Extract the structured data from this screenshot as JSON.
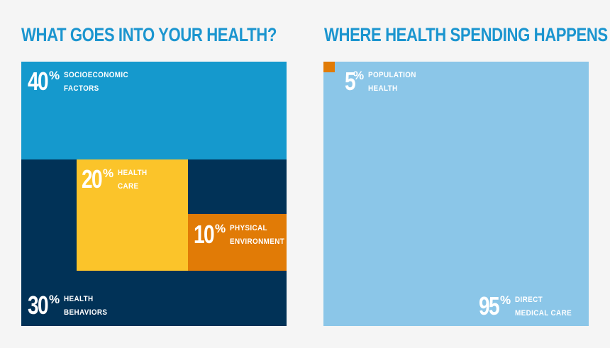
{
  "colors": {
    "background": "#f5f5f5",
    "title": "#1b95cf",
    "socioeconomic": "#1599cd",
    "behaviors": "#013257",
    "health_care": "#fbc42a",
    "physical": "#e17b06",
    "population": "#e17b06",
    "direct_care": "#8bc6e8",
    "label_light": "#ffffff"
  },
  "chart_data": [
    {
      "type": "treemap",
      "title": "WHAT GOES INTO YOUR HEALTH?",
      "segments": [
        {
          "key": "socioeconomic",
          "value": 40,
          "pct": "40",
          "unit": "%",
          "label_lines": [
            "SOCIOECONOMIC",
            "FACTORS"
          ]
        },
        {
          "key": "behaviors",
          "value": 30,
          "pct": "30",
          "unit": "%",
          "label_lines": [
            "HEALTH",
            "BEHAVIORS"
          ]
        },
        {
          "key": "health_care",
          "value": 20,
          "pct": "20",
          "unit": "%",
          "label_lines": [
            "HEALTH",
            "CARE"
          ]
        },
        {
          "key": "physical",
          "value": 10,
          "pct": "10",
          "unit": "%",
          "label_lines": [
            "PHYSICAL",
            "ENVIRONMENT"
          ]
        }
      ]
    },
    {
      "type": "treemap",
      "title": "WHERE HEALTH SPENDING HAPPENS",
      "segments": [
        {
          "key": "population",
          "value": 5,
          "pct": "5",
          "unit": "%",
          "label_lines": [
            "POPULATION",
            "HEALTH"
          ]
        },
        {
          "key": "direct_care",
          "value": 95,
          "pct": "95",
          "unit": "%",
          "label_lines": [
            "DIRECT",
            "MEDICAL CARE"
          ]
        }
      ]
    }
  ]
}
